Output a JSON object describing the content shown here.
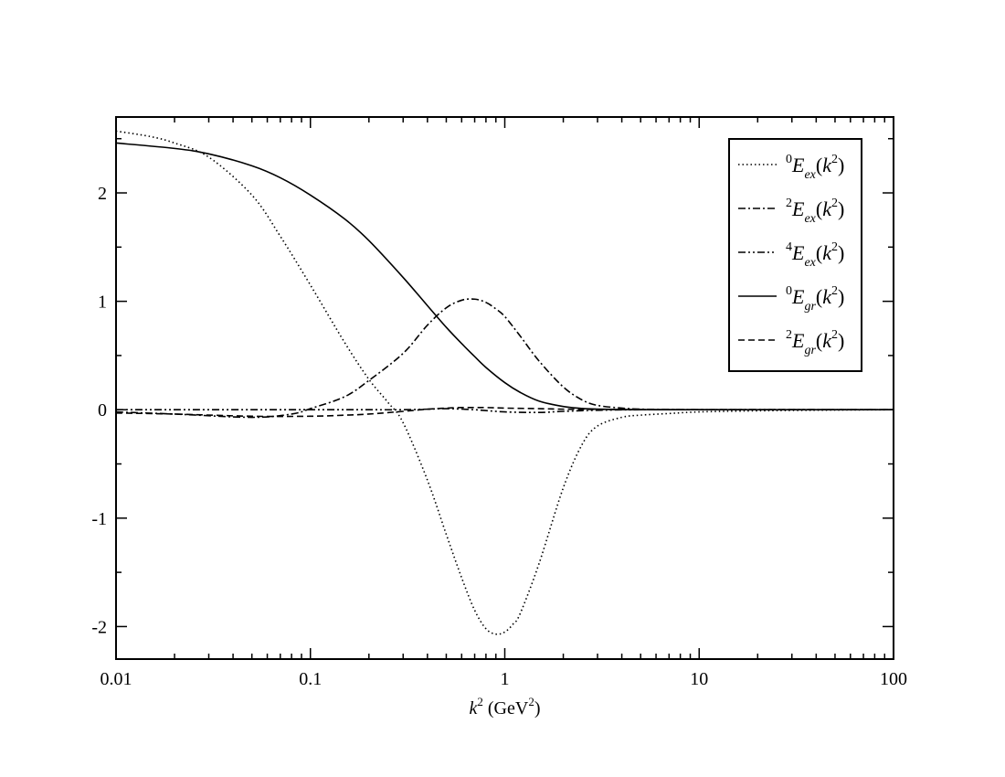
{
  "chart_data": {
    "type": "line",
    "title": "",
    "xlabel": {
      "base": "k",
      "sup": "2",
      "unit_prefix": " (GeV",
      "unit_sup": "2",
      "unit_suffix": ")"
    },
    "ylabel": "",
    "xscale": "log",
    "xlim": [
      0.01,
      100
    ],
    "ylim": [
      -2.3,
      2.7
    ],
    "x_ticks": [
      "0.01",
      "0.1",
      "1",
      "10",
      "100"
    ],
    "y_ticks": [
      "-2",
      "-1",
      "0",
      "1",
      "2"
    ],
    "grid": false,
    "legend_position": "top-right",
    "series": [
      {
        "name": "0E_ex(k^2)",
        "legend": {
          "pre_sup": "0",
          "base": "E",
          "sub": "ex",
          "arg_base": "k",
          "arg_sup": "2"
        },
        "style": "dotted",
        "x": [
          0.01,
          0.015,
          0.02,
          0.03,
          0.05,
          0.07,
          0.1,
          0.15,
          0.2,
          0.25,
          0.3,
          0.4,
          0.5,
          0.6,
          0.7,
          0.8,
          0.9,
          1.0,
          1.1,
          1.2,
          1.5,
          2.0,
          2.5,
          3.0,
          4.0,
          5.0,
          7.0,
          10,
          20,
          50,
          100
        ],
        "y": [
          2.57,
          2.52,
          2.46,
          2.33,
          1.98,
          1.6,
          1.15,
          0.62,
          0.28,
          0.07,
          -0.12,
          -0.65,
          -1.15,
          -1.55,
          -1.85,
          -2.02,
          -2.07,
          -2.05,
          -1.98,
          -1.88,
          -1.42,
          -0.72,
          -0.32,
          -0.15,
          -0.07,
          -0.05,
          -0.035,
          -0.02,
          -0.01,
          -0.003,
          0.0
        ]
      },
      {
        "name": "2E_ex(k^2)",
        "legend": {
          "pre_sup": "2",
          "base": "E",
          "sub": "ex",
          "arg_base": "k",
          "arg_sup": "2"
        },
        "style": "dashdot",
        "x": [
          0.01,
          0.02,
          0.05,
          0.08,
          0.1,
          0.15,
          0.2,
          0.3,
          0.4,
          0.5,
          0.6,
          0.7,
          0.8,
          0.9,
          1.0,
          1.2,
          1.5,
          2.0,
          2.5,
          3.0,
          4.0,
          5.0,
          7.0,
          10,
          20,
          100
        ],
        "y": [
          -0.02,
          -0.04,
          -0.07,
          -0.04,
          0.01,
          0.12,
          0.27,
          0.52,
          0.78,
          0.94,
          1.01,
          1.02,
          0.99,
          0.93,
          0.86,
          0.68,
          0.45,
          0.21,
          0.09,
          0.04,
          0.015,
          0.005,
          0.002,
          0.0,
          0.0,
          0.0
        ]
      },
      {
        "name": "4E_ex(k^2)",
        "legend": {
          "pre_sup": "4",
          "base": "E",
          "sub": "ex",
          "arg_base": "k",
          "arg_sup": "2"
        },
        "style": "dashdotdot",
        "x": [
          0.01,
          0.02,
          0.05,
          0.08,
          0.1,
          0.15,
          0.2,
          0.3,
          0.4,
          0.5,
          0.7,
          1.0,
          1.5,
          2.0,
          3.0,
          5.0,
          10,
          100
        ],
        "y": [
          0.0,
          0.0,
          0.0,
          0.0,
          0.0,
          0.0,
          0.0,
          0.0,
          0.005,
          0.01,
          0.0,
          -0.02,
          -0.025,
          -0.015,
          -0.005,
          0.0,
          0.0,
          0.0
        ]
      },
      {
        "name": "0E_gr(k^2)",
        "legend": {
          "pre_sup": "0",
          "base": "E",
          "sub": "gr",
          "arg_base": "k",
          "arg_sup": "2"
        },
        "style": "solid",
        "x": [
          0.01,
          0.02,
          0.03,
          0.05,
          0.07,
          0.1,
          0.15,
          0.2,
          0.3,
          0.4,
          0.5,
          0.6,
          0.7,
          0.8,
          1.0,
          1.2,
          1.5,
          2.0,
          2.5,
          3.0,
          4.0,
          5.0,
          7.0,
          10,
          20,
          100
        ],
        "y": [
          2.46,
          2.41,
          2.36,
          2.25,
          2.14,
          1.98,
          1.76,
          1.56,
          1.22,
          0.96,
          0.76,
          0.61,
          0.49,
          0.39,
          0.25,
          0.16,
          0.08,
          0.03,
          0.012,
          0.006,
          0.002,
          0.001,
          0.0,
          0.0,
          0.0,
          0.0
        ]
      },
      {
        "name": "2E_gr(k^2)",
        "legend": {
          "pre_sup": "2",
          "base": "E",
          "sub": "gr",
          "arg_base": "k",
          "arg_sup": "2"
        },
        "style": "dashed",
        "x": [
          0.01,
          0.02,
          0.05,
          0.1,
          0.15,
          0.2,
          0.3,
          0.4,
          0.5,
          0.6,
          0.7,
          0.8,
          1.0,
          1.5,
          2.0,
          3.0,
          5.0,
          10,
          100
        ],
        "y": [
          -0.03,
          -0.04,
          -0.06,
          -0.06,
          -0.05,
          -0.04,
          -0.015,
          0.005,
          0.015,
          0.02,
          0.02,
          0.02,
          0.015,
          0.01,
          0.005,
          0.003,
          0.001,
          0.0,
          0.0
        ]
      }
    ]
  }
}
